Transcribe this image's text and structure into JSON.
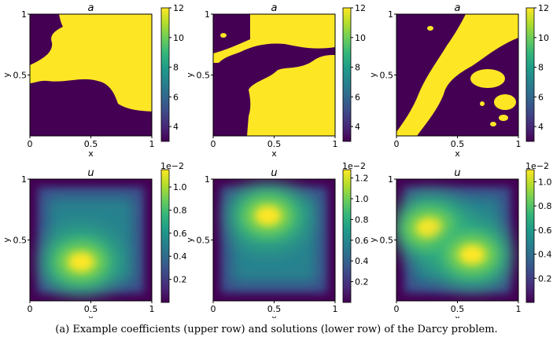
{
  "caption": "(a) Example coefficients (upper row) and solutions (lower row) of the Darcy problem.",
  "colors": {
    "low": "#440154",
    "high": "#fde725"
  },
  "chart_data": [
    {
      "type": "heatmap",
      "title": "a",
      "xlabel": "x",
      "ylabel": "y",
      "xticks": [
        "0",
        "0.5",
        "1"
      ],
      "yticks": [
        "0.5",
        "1"
      ],
      "colorbar": {
        "ticks": [
          "4",
          "6",
          "8",
          "10",
          "12"
        ],
        "range": [
          3,
          12
        ],
        "offset": ""
      },
      "field": "binary",
      "pattern": "upper-right yellow, wavy boundary"
    },
    {
      "type": "heatmap",
      "title": "a",
      "xlabel": "x",
      "ylabel": "y",
      "xticks": [
        "0",
        "0.5",
        "1"
      ],
      "yticks": [
        "0.5",
        "1"
      ],
      "colorbar": {
        "ticks": [
          "4",
          "6",
          "8",
          "10",
          "12"
        ],
        "range": [
          3,
          12
        ],
        "offset": ""
      },
      "field": "binary",
      "pattern": "right half yellow, lower-left dark"
    },
    {
      "type": "heatmap",
      "title": "a",
      "xlabel": "x",
      "ylabel": "y",
      "xticks": [
        "0",
        "0.5",
        "1"
      ],
      "yticks": [
        "0.5",
        "1"
      ],
      "colorbar": {
        "ticks": [
          "4",
          "6",
          "8",
          "10",
          "12"
        ],
        "range": [
          3,
          12
        ],
        "offset": ""
      },
      "field": "binary",
      "pattern": "diagonal yellow band"
    },
    {
      "type": "heatmap",
      "title": "u",
      "xlabel": "x",
      "ylabel": "y",
      "xticks": [
        "0",
        "0.5",
        "1"
      ],
      "yticks": [
        "0.5",
        "1"
      ],
      "colorbar": {
        "ticks": [
          "0.2",
          "0.4",
          "0.6",
          "0.8",
          "1.0"
        ],
        "range": [
          0,
          1.15
        ],
        "offset": "1e−2"
      },
      "field": "smooth",
      "peaks": [
        {
          "x": 0.42,
          "y": 0.32,
          "value": 1.15
        }
      ]
    },
    {
      "type": "heatmap",
      "title": "u",
      "xlabel": "x",
      "ylabel": "y",
      "xticks": [
        "0",
        "0.5",
        "1"
      ],
      "yticks": [
        "0.5",
        "1"
      ],
      "colorbar": {
        "ticks": [
          "0.2",
          "0.4",
          "0.6",
          "0.8",
          "1.0",
          "1.2"
        ],
        "range": [
          0,
          1.28
        ],
        "offset": "1e−2"
      },
      "field": "smooth",
      "peaks": [
        {
          "x": 0.45,
          "y": 0.7,
          "value": 1.28
        }
      ]
    },
    {
      "type": "heatmap",
      "title": "u",
      "xlabel": "x",
      "ylabel": "y",
      "xticks": [
        "0",
        "0.5",
        "1"
      ],
      "yticks": [
        "0.5",
        "1"
      ],
      "colorbar": {
        "ticks": [
          "0.2",
          "0.4",
          "0.6",
          "0.8",
          "1.0"
        ],
        "range": [
          0,
          1.1
        ],
        "offset": "1e−2"
      },
      "field": "smooth",
      "peaks": [
        {
          "x": 0.27,
          "y": 0.6,
          "value": 1.1
        },
        {
          "x": 0.62,
          "y": 0.38,
          "value": 1.08
        }
      ]
    }
  ]
}
